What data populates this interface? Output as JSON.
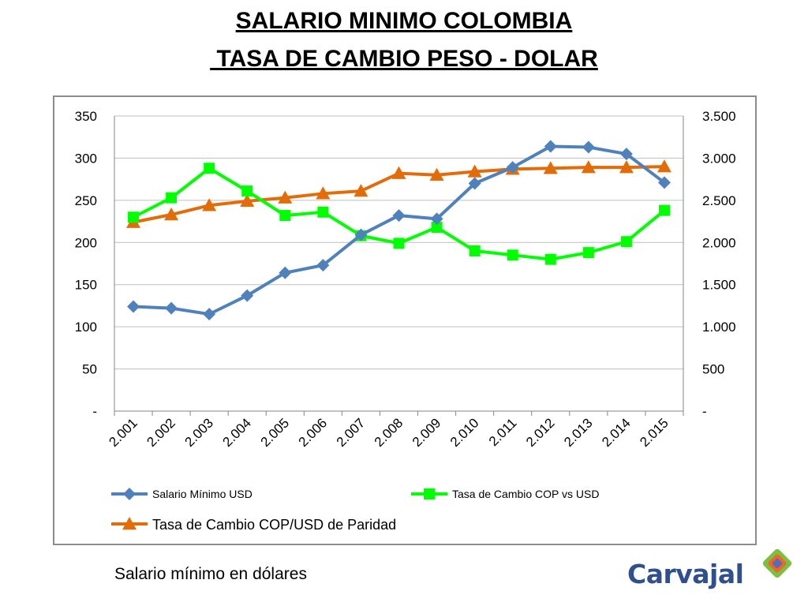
{
  "page": {
    "title_line1": "SALARIO MINIMO COLOMBIA",
    "title_line2": " TASA DE CAMBIO PESO - DOLAR",
    "caption": "Salario mínimo en dólares",
    "logo_text": "Carvajal"
  },
  "chart_data": {
    "type": "line",
    "title": "",
    "xlabel": "",
    "ylabel": "",
    "categories": [
      "2.001",
      "2.002",
      "2.003",
      "2.004",
      "2.005",
      "2.006",
      "2.007",
      "2.008",
      "2.009",
      "2.010",
      "2.011",
      "2.012",
      "2.013",
      "2.014",
      "2.015"
    ],
    "y_left": {
      "lim": [
        0,
        350
      ],
      "ticks": [
        0,
        50,
        100,
        150,
        200,
        250,
        300,
        350
      ],
      "tick_labels": [
        "-",
        "50",
        "100",
        "150",
        "200",
        "250",
        "300",
        "350"
      ]
    },
    "y_right": {
      "lim": [
        0,
        3500
      ],
      "ticks": [
        0,
        500,
        1000,
        1500,
        2000,
        2500,
        3000,
        3500
      ],
      "tick_labels": [
        "-",
        "500",
        "1.000",
        "1.500",
        "2.000",
        "2.500",
        "3.000",
        "3.500"
      ]
    },
    "grid": "horizontal",
    "legend": "bottom",
    "series": [
      {
        "name": "Salario Mínimo USD",
        "axis": "left",
        "color": "#4f81bd",
        "marker": "diamond",
        "values": [
          124,
          122,
          115,
          137,
          164,
          173,
          209,
          232,
          228,
          270,
          289,
          314,
          313,
          305,
          271
        ]
      },
      {
        "name": "Tasa de Cambio COP vs USD",
        "axis": "right",
        "color": "#00ff00",
        "marker": "square",
        "values": [
          2300,
          2530,
          2880,
          2610,
          2320,
          2360,
          2080,
          1990,
          2180,
          1900,
          1850,
          1800,
          1880,
          2010,
          2380
        ]
      },
      {
        "name": "Tasa de Cambio COP/USD de Paridad",
        "axis": "right",
        "color": "#e36c09",
        "marker": "triangle",
        "values": [
          2240,
          2330,
          2440,
          2490,
          2530,
          2580,
          2610,
          2820,
          2800,
          2840,
          2870,
          2880,
          2890,
          2890,
          2900
        ]
      }
    ]
  }
}
